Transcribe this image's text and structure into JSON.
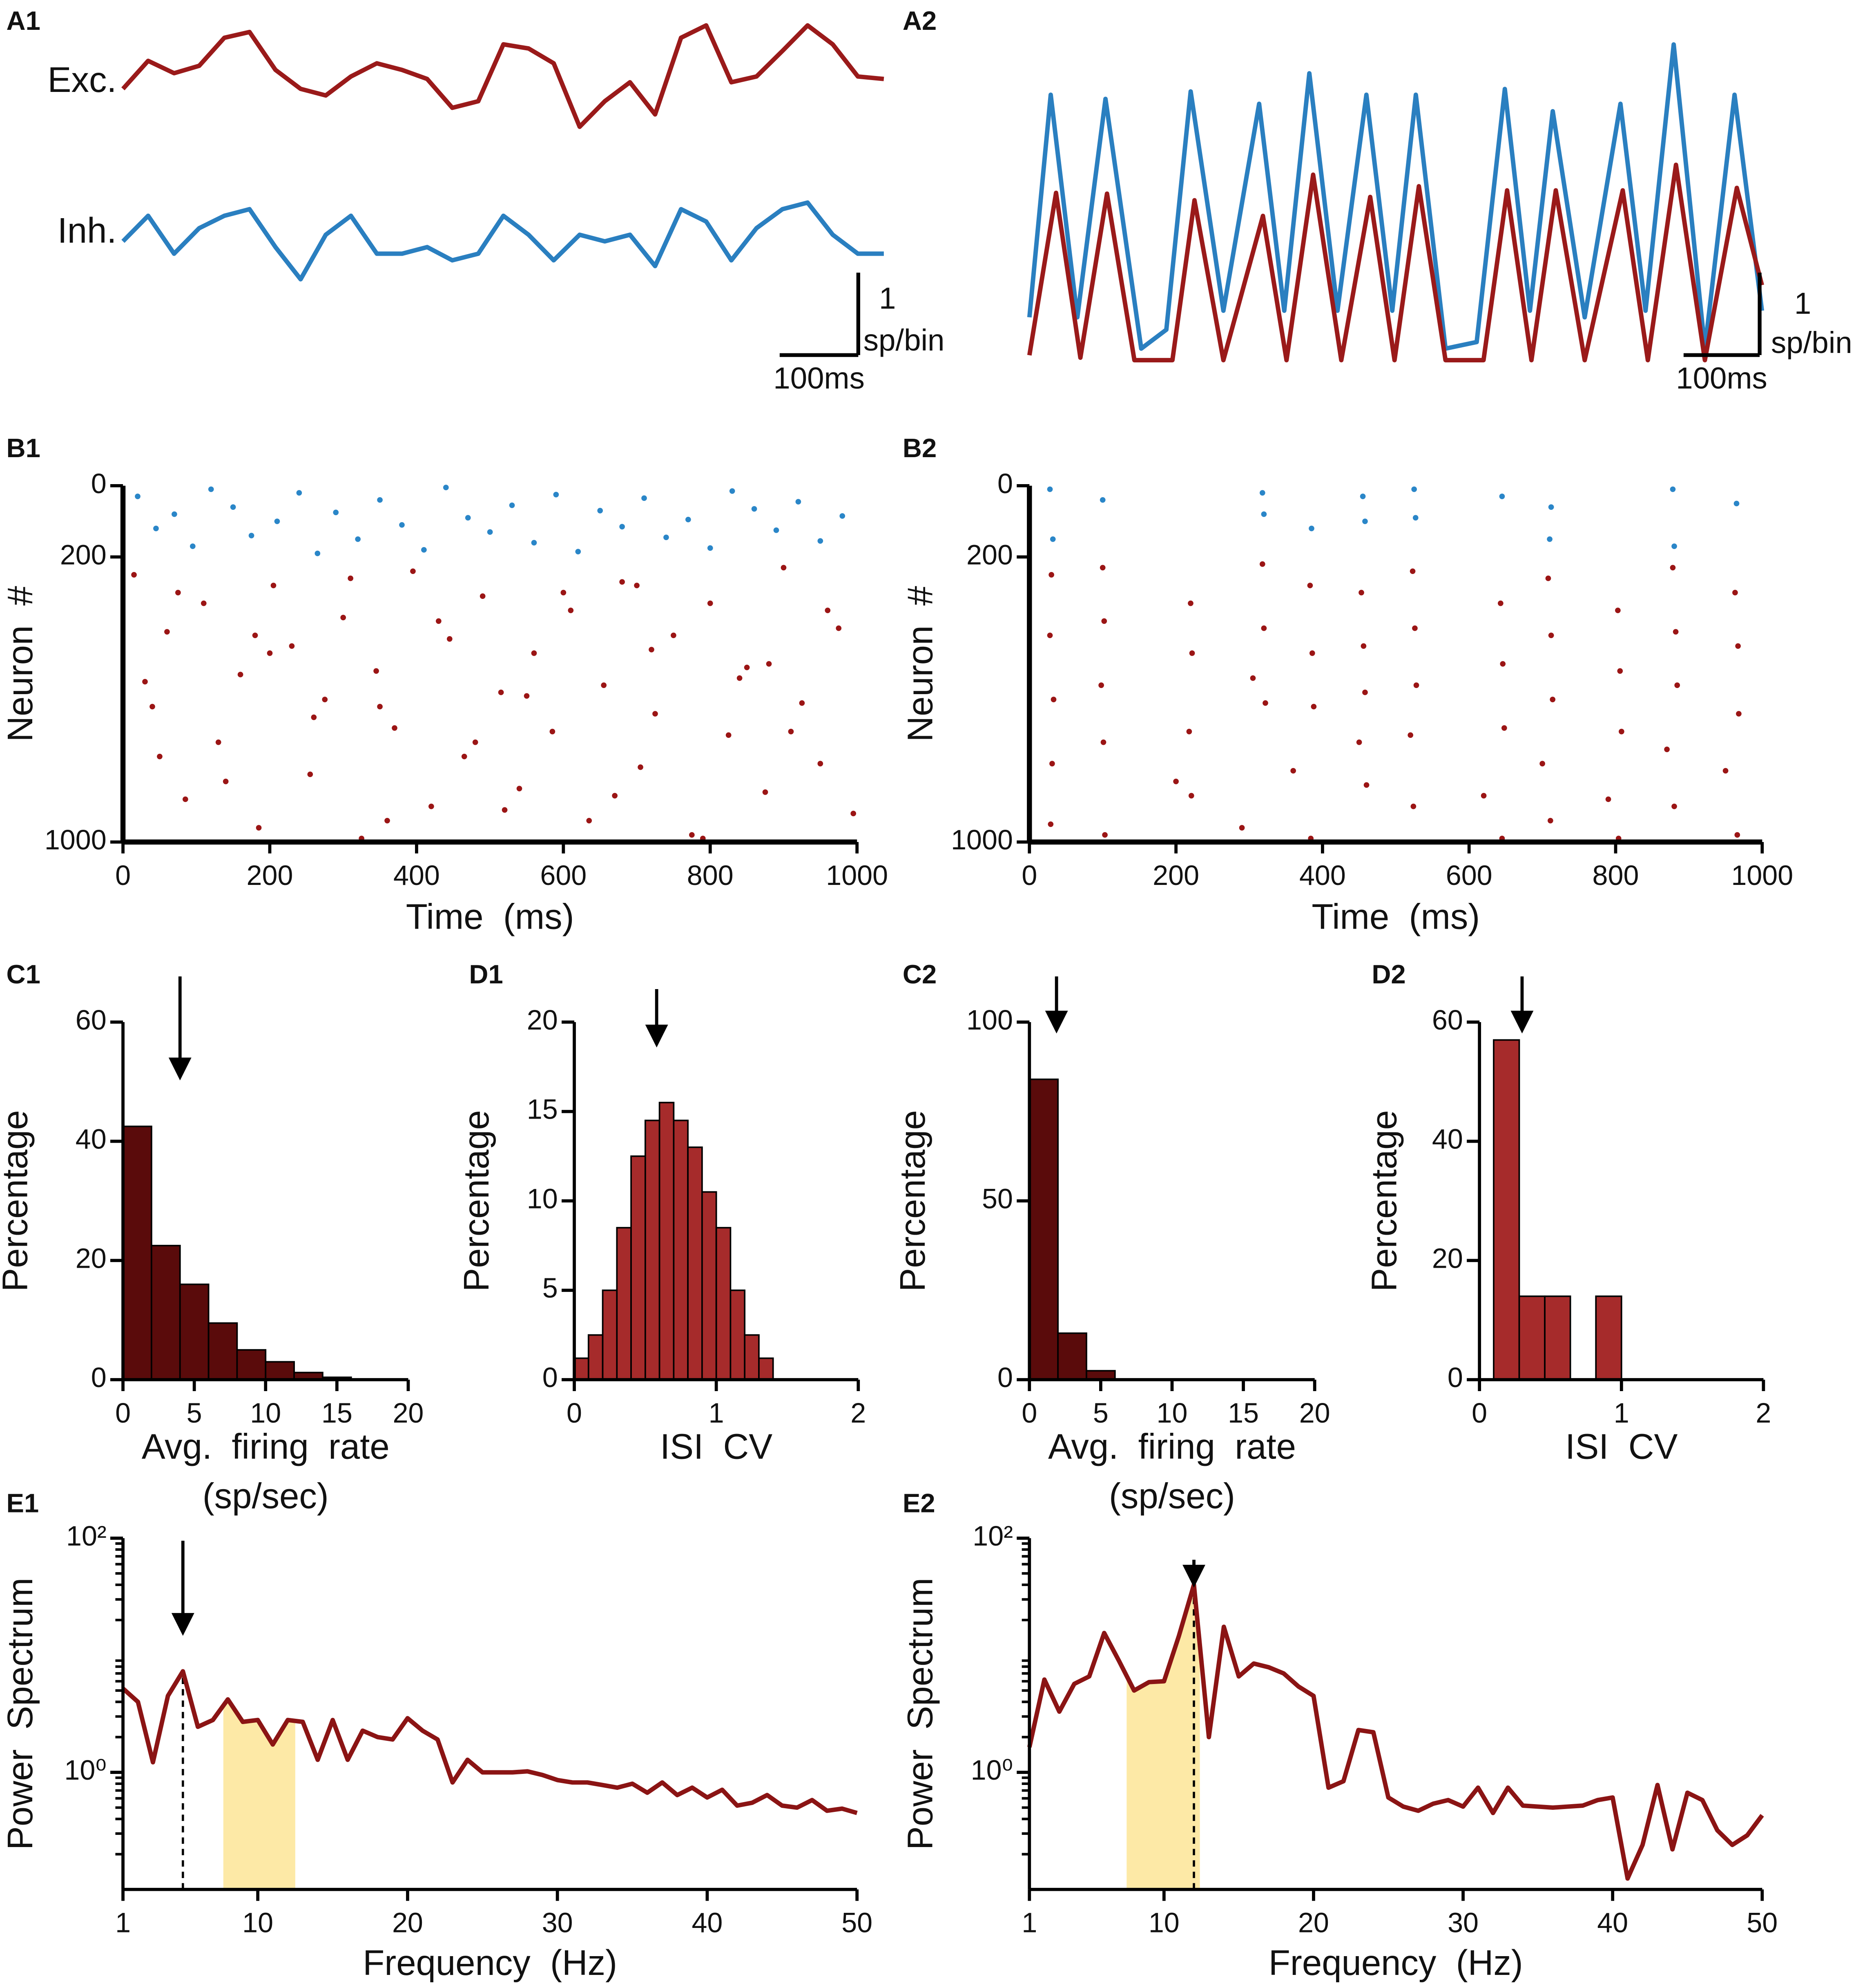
{
  "chart_data": [
    {
      "type": "trace",
      "panel": "A1",
      "series": [
        {
          "name": "Exc.",
          "color": "#9a1a1a",
          "x": [
            0,
            32,
            65,
            97,
            129,
            161,
            194,
            226,
            258,
            290,
            323,
            355,
            387,
            419,
            452,
            484,
            516,
            548,
            581,
            613,
            645,
            677,
            710,
            742,
            774,
            806,
            839,
            871,
            903,
            935,
            968
          ],
          "values": [
            3.23,
            3.57,
            3.42,
            3.51,
            3.85,
            3.92,
            3.46,
            3.23,
            3.15,
            3.38,
            3.54,
            3.46,
            3.35,
            3.0,
            3.08,
            3.77,
            3.72,
            3.54,
            2.77,
            3.08,
            3.31,
            2.92,
            3.85,
            4.0,
            3.31,
            3.38,
            3.69,
            4.0,
            3.77,
            3.38,
            3.35
          ]
        },
        {
          "name": "Inh.",
          "color": "#2a7fc0",
          "x": [
            0,
            32,
            65,
            97,
            129,
            161,
            194,
            226,
            258,
            290,
            323,
            355,
            387,
            419,
            452,
            484,
            516,
            548,
            581,
            613,
            645,
            677,
            710,
            742,
            774,
            806,
            839,
            871,
            903,
            935,
            968
          ],
          "values": [
            1.38,
            1.69,
            1.23,
            1.54,
            1.69,
            1.77,
            1.31,
            0.92,
            1.46,
            1.69,
            1.23,
            1.23,
            1.31,
            1.15,
            1.23,
            1.69,
            1.46,
            1.15,
            1.46,
            1.38,
            1.46,
            1.08,
            1.77,
            1.62,
            1.15,
            1.54,
            1.77,
            1.85,
            1.46,
            1.23,
            1.23
          ]
        }
      ],
      "scalebar": {
        "x": 100,
        "x_label": "100ms",
        "y": 1,
        "y_unit": "sp/bin"
      }
    },
    {
      "type": "trace",
      "panel": "A2",
      "series": [
        {
          "color": "#2a7fc0",
          "x": [
            0,
            28,
            63,
            100,
            147,
            180,
            212,
            255,
            302,
            335,
            368,
            405,
            443,
            477,
            508,
            547,
            588,
            625,
            658,
            688,
            730,
            777,
            810,
            847,
            888,
            927,
            963
          ],
          "values": [
            0.52,
            3.22,
            0.52,
            3.17,
            0.14,
            0.37,
            3.26,
            0.6,
            3.11,
            0.6,
            3.48,
            0.6,
            3.22,
            0.6,
            3.22,
            0.14,
            0.22,
            3.29,
            0.6,
            3.02,
            0.52,
            3.11,
            0.6,
            3.83,
            0.14,
            3.22,
            0.6
          ]
        },
        {
          "color": "#9a1a1a",
          "x": [
            0,
            35,
            67,
            102,
            138,
            188,
            217,
            255,
            307,
            338,
            373,
            410,
            448,
            480,
            512,
            547,
            597,
            628,
            660,
            692,
            730,
            780,
            813,
            850,
            888,
            930,
            963
          ],
          "values": [
            0.06,
            2.03,
            0.03,
            2.02,
            0,
            0,
            1.94,
            0,
            1.75,
            0,
            2.25,
            0,
            1.98,
            0,
            2.11,
            0,
            0,
            2.06,
            0,
            2.06,
            0,
            2.06,
            0,
            2.37,
            0,
            2.09,
            0.91
          ]
        }
      ],
      "scalebar": {
        "x": 100,
        "x_label": "100ms",
        "y": 1,
        "y_unit": "sp/bin"
      }
    },
    {
      "type": "scatter",
      "panel": "B1",
      "xlabel": "Time  (ms)",
      "ylabel": "Neuron  #",
      "xlim": [
        0,
        1000
      ],
      "xticks": [
        0,
        200,
        400,
        600,
        800,
        1000
      ],
      "ylim": [
        1000,
        0
      ],
      "yticks": [
        0,
        200,
        1000
      ],
      "series": [
        {
          "color": "#2a86c8",
          "x": [
            20,
            45,
            70,
            95,
            120,
            150,
            175,
            210,
            240,
            265,
            290,
            320,
            350,
            380,
            410,
            440,
            470,
            500,
            530,
            560,
            590,
            620,
            650,
            680,
            710,
            740,
            770,
            800,
            830,
            860,
            890,
            920,
            950,
            980
          ],
          "y": [
            30,
            120,
            80,
            170,
            10,
            60,
            140,
            100,
            20,
            190,
            75,
            150,
            40,
            110,
            180,
            5,
            90,
            130,
            55,
            160,
            25,
            185,
            70,
            115,
            35,
            145,
            95,
            175,
            15,
            65,
            125,
            45,
            155,
            85
          ]
        },
        {
          "color": "#9b1515",
          "x": [
            15,
            40,
            60,
            85,
            110,
            130,
            160,
            185,
            205,
            230,
            255,
            275,
            300,
            325,
            345,
            370,
            395,
            420,
            445,
            465,
            490,
            515,
            540,
            560,
            585,
            610,
            635,
            655,
            680,
            705,
            725,
            750,
            775,
            800,
            825,
            850,
            875,
            900,
            925,
            950,
            975,
            995,
            30,
            75,
            140,
            200,
            260,
            310,
            360,
            430,
            480,
            550,
            600,
            670,
            720,
            790,
            840,
            910,
            960,
            50,
            180,
            350,
            520,
            700,
            880
          ],
          "y": [
            250,
            620,
            410,
            880,
            330,
            720,
            530,
            960,
            280,
            450,
            810,
            600,
            370,
            990,
            520,
            680,
            240,
            900,
            430,
            760,
            310,
            580,
            850,
            470,
            690,
            350,
            940,
            560,
            270,
            790,
            640,
            420,
            980,
            330,
            700,
            510,
            860,
            230,
            610,
            780,
            400,
            920,
            550,
            300,
            830,
            470,
            650,
            260,
            940,
            380,
            720,
            590,
            300,
            870,
            460,
            990,
            540,
            690,
            350,
            760,
            420,
            620,
            910,
            280,
            500
          ]
        }
      ]
    },
    {
      "type": "scatter",
      "panel": "B2",
      "xlabel": "Time  (ms)",
      "ylabel": "Neuron  #",
      "xlim": [
        0,
        1000
      ],
      "xticks": [
        0,
        200,
        400,
        600,
        800,
        1000
      ],
      "ylim": [
        1000,
        0
      ],
      "yticks": [
        0,
        200,
        1000
      ],
      "series": [
        {
          "color": "#2a86c8",
          "x": [
            28,
            32,
            100,
            320,
            318,
            385,
            455,
            458,
            525,
            527,
            645,
            712,
            710,
            878,
            880,
            965
          ],
          "y": [
            10,
            150,
            40,
            80,
            20,
            120,
            30,
            100,
            10,
            90,
            30,
            60,
            150,
            10,
            170,
            50
          ]
        },
        {
          "color": "#9b1515",
          "x": [
            30,
            28,
            33,
            31,
            29,
            100,
            102,
            98,
            101,
            103,
            220,
            222,
            218,
            221,
            200,
            318,
            320,
            322,
            290,
            305,
            383,
            386,
            388,
            360,
            384,
            453,
            456,
            458,
            460,
            450,
            523,
            526,
            528,
            520,
            524,
            643,
            646,
            648,
            620,
            645,
            708,
            712,
            714,
            700,
            711,
            803,
            806,
            808,
            790,
            804,
            878,
            882,
            884,
            870,
            880,
            963,
            967,
            968,
            950,
            966
          ],
          "y": [
            250,
            420,
            600,
            780,
            950,
            230,
            380,
            560,
            720,
            980,
            330,
            470,
            690,
            870,
            830,
            220,
            400,
            610,
            960,
            540,
            280,
            470,
            620,
            800,
            990,
            300,
            450,
            580,
            840,
            720,
            240,
            400,
            560,
            700,
            900,
            330,
            500,
            680,
            870,
            990,
            260,
            420,
            600,
            780,
            940,
            350,
            520,
            690,
            880,
            990,
            230,
            410,
            560,
            740,
            900,
            300,
            450,
            640,
            800,
            980
          ]
        }
      ]
    },
    {
      "type": "histogram",
      "panel": "C1",
      "xlabel": [
        "Avg.  firing  rate",
        "(sp/sec)"
      ],
      "ylabel": "Percentage",
      "color": "#5a0b0b",
      "bins": [
        0,
        2,
        4,
        6,
        8,
        10,
        12,
        14,
        16
      ],
      "values": [
        42.5,
        22.5,
        16,
        9.5,
        5,
        3,
        1.2,
        0.4
      ],
      "xlim": [
        0,
        20
      ],
      "xticks": [
        0,
        5,
        10,
        15,
        20
      ],
      "ylim": [
        0,
        60
      ],
      "yticks": [
        0,
        20,
        40,
        60
      ],
      "arrow_x": 4
    },
    {
      "type": "histogram",
      "panel": "D1",
      "xlabel": "ISI  CV",
      "ylabel": "Percentage",
      "color": "#a62b2b",
      "bins": [
        0,
        0.1,
        0.2,
        0.3,
        0.4,
        0.5,
        0.6,
        0.7,
        0.8,
        0.9,
        1,
        1.1,
        1.2,
        1.3,
        1.4
      ],
      "values": [
        1.2,
        2.5,
        5,
        8.5,
        12.5,
        14.5,
        15.5,
        14.5,
        13,
        10.5,
        8.5,
        5,
        2.5,
        1.2
      ],
      "xlim": [
        0,
        2
      ],
      "xticks": [
        0,
        1,
        2
      ],
      "ylim": [
        0,
        20
      ],
      "yticks": [
        0,
        5,
        10,
        15,
        20
      ],
      "arrow_x": 0.58
    },
    {
      "type": "histogram",
      "panel": "C2",
      "xlabel": [
        "Avg.  firing  rate",
        "(sp/sec)"
      ],
      "ylabel": "Percentage",
      "color": "#5a0b0b",
      "bins": [
        0,
        2,
        4,
        6
      ],
      "values": [
        84,
        13,
        2.5
      ],
      "xlim": [
        0,
        20
      ],
      "xticks": [
        0,
        5,
        10,
        15,
        20
      ],
      "ylim": [
        0,
        100
      ],
      "yticks": [
        0,
        50,
        100
      ],
      "arrow_x": 1.9
    },
    {
      "type": "histogram",
      "panel": "D2",
      "xlabel": "ISI  CV",
      "ylabel": "Percentage",
      "color": "#a62b2b",
      "bins": [
        0.1,
        0.28,
        0.46,
        0.64,
        0.82,
        1.0
      ],
      "values": [
        57,
        14,
        14,
        0,
        14
      ],
      "xlim": [
        0,
        2
      ],
      "xticks": [
        0,
        1,
        2
      ],
      "ylim": [
        0,
        60
      ],
      "yticks": [
        0,
        20,
        40,
        60
      ],
      "arrow_x": 0.3
    },
    {
      "type": "spectrum",
      "panel": "E1",
      "xlabel": "Frequency  (Hz)",
      "ylabel": "Power  Spectrum",
      "color": "#8b1414",
      "x": [
        1,
        2,
        3,
        4,
        5,
        6,
        7,
        8,
        9,
        10,
        11,
        12,
        13,
        14,
        15,
        16,
        17,
        18,
        19,
        20,
        21,
        22,
        23,
        24,
        25,
        26,
        27,
        28,
        29,
        30,
        31,
        32,
        33,
        34,
        35,
        36,
        37,
        38,
        39,
        40,
        41,
        42,
        43,
        44,
        45,
        46,
        47,
        48,
        49,
        50
      ],
      "values": [
        5.2,
        4.0,
        1.22,
        4.5,
        7.3,
        2.45,
        2.8,
        4.2,
        2.7,
        2.8,
        1.73,
        2.8,
        2.7,
        1.28,
        2.8,
        1.28,
        2.27,
        2.0,
        1.91,
        2.9,
        2.27,
        1.91,
        0.82,
        1.28,
        1,
        1,
        1,
        1.02,
        0.95,
        0.86,
        0.82,
        0.82,
        0.78,
        0.74,
        0.8,
        0.67,
        0.82,
        0.64,
        0.74,
        0.61,
        0.71,
        0.52,
        0.55,
        0.64,
        0.52,
        0.5,
        0.58,
        0.47,
        0.49,
        0.45
      ],
      "xlim": [
        1,
        50
      ],
      "xticks": [
        1,
        10,
        20,
        30,
        40,
        50
      ],
      "ylog": true,
      "ylim": [
        0.1,
        100
      ],
      "yticks": [
        {
          "value": 1,
          "label": "10⁰"
        },
        {
          "value": 100,
          "label": "10²"
        }
      ],
      "yminor": [
        0.2,
        0.3,
        0.4,
        0.5,
        0.6,
        0.7,
        0.8,
        0.9,
        2,
        3,
        4,
        5,
        6,
        7,
        8,
        9,
        20,
        30,
        40,
        50,
        60,
        70,
        80,
        90
      ],
      "highlight": [
        7.7,
        12.5
      ],
      "highlight_color": "#fde9a6",
      "arrow_x": 5
    },
    {
      "type": "spectrum",
      "panel": "E2",
      "xlabel": "Frequency  (Hz)",
      "ylabel": "Power  Spectrum",
      "color": "#8b1414",
      "x": [
        1,
        2,
        3,
        4,
        5,
        6,
        7,
        8,
        9,
        10,
        11,
        12,
        13,
        14,
        15,
        16,
        17,
        18,
        19,
        20,
        21,
        22,
        23,
        24,
        25,
        26,
        27,
        28,
        29,
        30,
        31,
        32,
        33,
        34,
        35,
        36,
        37,
        38,
        39,
        40,
        41,
        42,
        43,
        44,
        45,
        46,
        47,
        48,
        49,
        50
      ],
      "values": [
        1.64,
        6.2,
        3.3,
        5.7,
        6.6,
        15.5,
        8.9,
        5.0,
        5.9,
        6.0,
        14.7,
        40,
        2.0,
        17.5,
        6.6,
        8.5,
        7.9,
        7.0,
        5.4,
        4.5,
        0.74,
        0.84,
        2.3,
        2.2,
        0.61,
        0.51,
        0.47,
        0.54,
        0.58,
        0.51,
        0.74,
        0.45,
        0.74,
        0.52,
        0.51,
        0.5,
        0.51,
        0.52,
        0.58,
        0.61,
        0.124,
        0.24,
        0.78,
        0.22,
        0.67,
        0.58,
        0.32,
        0.24,
        0.29,
        0.43
      ],
      "xlim": [
        1,
        50
      ],
      "xticks": [
        1,
        10,
        20,
        30,
        40,
        50
      ],
      "ylog": true,
      "ylim": [
        0.1,
        100
      ],
      "yticks": [
        {
          "value": 1,
          "label": "10⁰"
        },
        {
          "value": 100,
          "label": "10²"
        }
      ],
      "yminor": [
        0.2,
        0.3,
        0.4,
        0.5,
        0.6,
        0.7,
        0.8,
        0.9,
        2,
        3,
        4,
        5,
        6,
        7,
        8,
        9,
        20,
        30,
        40,
        50,
        60,
        70,
        80,
        90
      ],
      "highlight": [
        7.5,
        12.4
      ],
      "highlight_color": "#fde9a6",
      "arrow_x": 12
    }
  ]
}
